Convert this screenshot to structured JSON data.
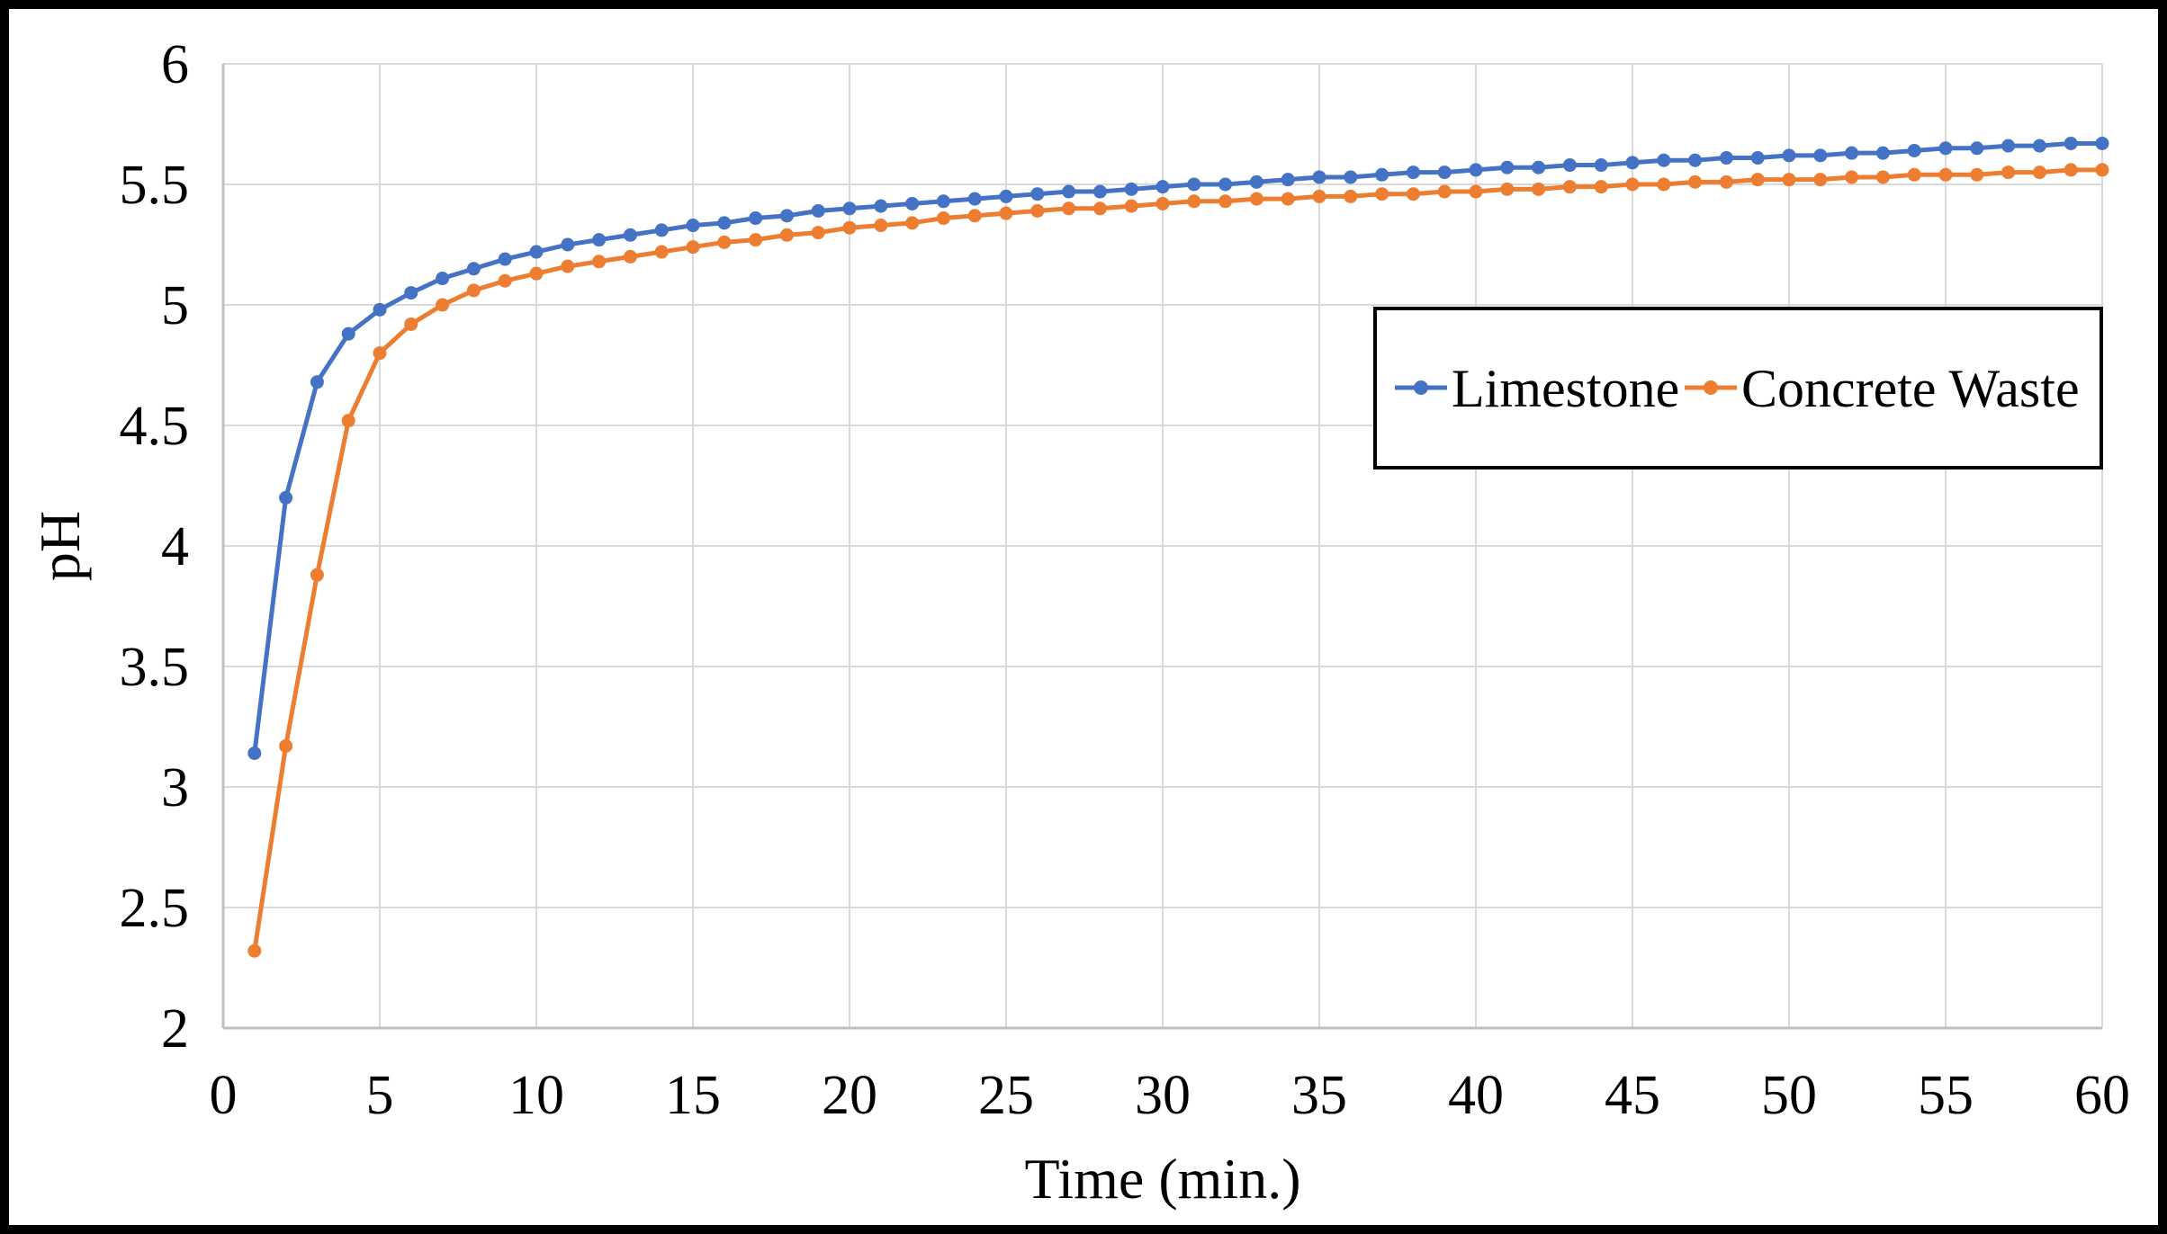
{
  "figure": {
    "background": "#ffffff",
    "frame_color": "#000000",
    "gridline_color": "#d9d9d9",
    "axisline_color": "#bfbfbf"
  },
  "chart_data": {
    "type": "line",
    "title": "",
    "xlabel": "Time (min.)",
    "ylabel": "pH",
    "xlim": [
      0,
      60
    ],
    "ylim": [
      2,
      6
    ],
    "x_ticks": [
      0,
      5,
      10,
      15,
      20,
      25,
      30,
      35,
      40,
      45,
      50,
      55,
      60
    ],
    "y_ticks": [
      2,
      2.5,
      3,
      3.5,
      4,
      4.5,
      5,
      5.5,
      6
    ],
    "grid": true,
    "legend_position": "inside-right-box",
    "x": [
      1,
      2,
      3,
      4,
      5,
      6,
      7,
      8,
      9,
      10,
      11,
      12,
      13,
      14,
      15,
      16,
      17,
      18,
      19,
      20,
      21,
      22,
      23,
      24,
      25,
      26,
      27,
      28,
      29,
      30,
      31,
      32,
      33,
      34,
      35,
      36,
      37,
      38,
      39,
      40,
      41,
      42,
      43,
      44,
      45,
      46,
      47,
      48,
      49,
      50,
      51,
      52,
      53,
      54,
      55,
      56,
      57,
      58,
      59,
      60
    ],
    "series": [
      {
        "name": "Limestone",
        "color": "#4472C4",
        "marker": "circle",
        "values": [
          3.14,
          4.2,
          4.68,
          4.88,
          4.98,
          5.05,
          5.11,
          5.15,
          5.19,
          5.22,
          5.25,
          5.27,
          5.29,
          5.31,
          5.33,
          5.34,
          5.36,
          5.37,
          5.39,
          5.4,
          5.41,
          5.42,
          5.43,
          5.44,
          5.45,
          5.46,
          5.47,
          5.47,
          5.48,
          5.49,
          5.5,
          5.5,
          5.51,
          5.52,
          5.53,
          5.53,
          5.54,
          5.55,
          5.55,
          5.56,
          5.57,
          5.57,
          5.58,
          5.58,
          5.59,
          5.6,
          5.6,
          5.61,
          5.61,
          5.62,
          5.62,
          5.63,
          5.63,
          5.64,
          5.65,
          5.65,
          5.66,
          5.66,
          5.67,
          5.67
        ]
      },
      {
        "name": "Concrete Waste",
        "color": "#ED7D31",
        "marker": "circle",
        "values": [
          2.32,
          3.17,
          3.88,
          4.52,
          4.8,
          4.92,
          5.0,
          5.06,
          5.1,
          5.13,
          5.16,
          5.18,
          5.2,
          5.22,
          5.24,
          5.26,
          5.27,
          5.29,
          5.3,
          5.32,
          5.33,
          5.34,
          5.36,
          5.37,
          5.38,
          5.39,
          5.4,
          5.4,
          5.41,
          5.42,
          5.43,
          5.43,
          5.44,
          5.44,
          5.45,
          5.45,
          5.46,
          5.46,
          5.47,
          5.47,
          5.48,
          5.48,
          5.49,
          5.49,
          5.5,
          5.5,
          5.51,
          5.51,
          5.52,
          5.52,
          5.52,
          5.53,
          5.53,
          5.54,
          5.54,
          5.54,
          5.55,
          5.55,
          5.56,
          5.56
        ]
      }
    ]
  }
}
